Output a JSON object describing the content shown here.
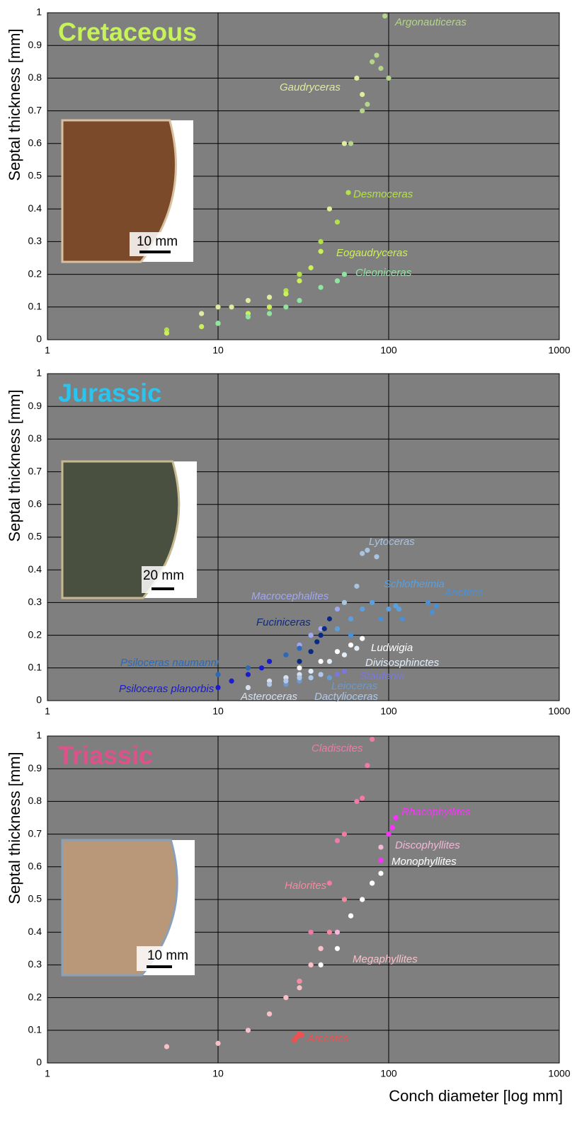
{
  "chart_data": [
    {
      "type": "scatter",
      "title": "Cretaceous",
      "title_color": "#c6f25a",
      "y_label": "Septal thickness [mm]",
      "inset_scale": "10 mm",
      "log_x": true,
      "grid": true,
      "xlim": [
        1,
        1000
      ],
      "xticks": [
        1,
        10,
        100,
        1000
      ],
      "ylim": [
        0,
        1
      ],
      "yticks": [
        0,
        0.1,
        0.2,
        0.3,
        0.4,
        0.5,
        0.6,
        0.7,
        0.8,
        0.9,
        1
      ],
      "series": [
        {
          "name": "Argonauticeras",
          "color": "#b5d58a",
          "x": [
            60,
            70,
            75,
            80,
            85,
            90,
            95,
            100
          ],
          "y": [
            0.6,
            0.7,
            0.72,
            0.85,
            0.87,
            0.83,
            0.99,
            0.8
          ]
        },
        {
          "name": "Gaudryceras",
          "color": "#e0eca0",
          "x": [
            8,
            10,
            12,
            15,
            20,
            30,
            45,
            55,
            65,
            70
          ],
          "y": [
            0.08,
            0.1,
            0.1,
            0.12,
            0.13,
            0.2,
            0.4,
            0.6,
            0.8,
            0.75
          ]
        },
        {
          "name": "Desmoceras",
          "color": "#b4e14a",
          "x": [
            5,
            10,
            15,
            20,
            25,
            30,
            40,
            50,
            58
          ],
          "y": [
            0.03,
            0.05,
            0.08,
            0.1,
            0.15,
            0.2,
            0.3,
            0.36,
            0.45
          ]
        },
        {
          "name": "Eogaudryceras",
          "color": "#ccf05a",
          "x": [
            5,
            8,
            10,
            15,
            20,
            25,
            30,
            35,
            40
          ],
          "y": [
            0.02,
            0.04,
            0.05,
            0.08,
            0.1,
            0.14,
            0.18,
            0.22,
            0.27
          ]
        },
        {
          "name": "Cleoniceras",
          "color": "#8ee6a0",
          "x": [
            10,
            15,
            20,
            25,
            30,
            40,
            50,
            55
          ],
          "y": [
            0.05,
            0.07,
            0.08,
            0.1,
            0.12,
            0.16,
            0.18,
            0.2
          ]
        }
      ]
    },
    {
      "type": "scatter",
      "title": "Jurassic",
      "title_color": "#29c5f0",
      "y_label": "Septal thickness [mm]",
      "inset_scale": "20 mm",
      "log_x": true,
      "grid": true,
      "xlim": [
        1,
        1000
      ],
      "xticks": [
        1,
        10,
        100,
        1000
      ],
      "ylim": [
        0,
        1
      ],
      "yticks": [
        0,
        0.1,
        0.2,
        0.3,
        0.4,
        0.5,
        0.6,
        0.7,
        0.8,
        0.9,
        1
      ],
      "series": [
        {
          "name": "Lytoceras",
          "color": "#a8c4e0",
          "x": [
            35,
            45,
            55,
            65,
            70,
            75,
            85
          ],
          "y": [
            0.2,
            0.25,
            0.3,
            0.35,
            0.45,
            0.46,
            0.44
          ]
        },
        {
          "name": "Schlotheimia",
          "color": "#5aa0e0",
          "x": [
            40,
            50,
            60,
            70,
            80,
            100,
            110,
            115
          ],
          "y": [
            0.2,
            0.22,
            0.25,
            0.28,
            0.3,
            0.28,
            0.29,
            0.28
          ]
        },
        {
          "name": "Arietites",
          "color": "#4a90d8",
          "x": [
            60,
            90,
            120,
            170,
            180,
            190
          ],
          "y": [
            0.2,
            0.25,
            0.25,
            0.3,
            0.27,
            0.29
          ]
        },
        {
          "name": "Macrocephalites",
          "color": "#a0a8f0",
          "x": [
            30,
            35,
            40,
            45,
            50
          ],
          "y": [
            0.17,
            0.2,
            0.22,
            0.25,
            0.28
          ]
        },
        {
          "name": "Fuciniceras",
          "color": "#0a2a80",
          "x": [
            30,
            35,
            38,
            40,
            42,
            45
          ],
          "y": [
            0.12,
            0.15,
            0.18,
            0.2,
            0.22,
            0.25
          ]
        },
        {
          "name": "Ludwigia",
          "color": "#ffffff",
          "x": [
            30,
            40,
            50,
            60,
            70
          ],
          "y": [
            0.1,
            0.12,
            0.15,
            0.17,
            0.19
          ]
        },
        {
          "name": "Divisosphinctes",
          "color": "#e0ecf8",
          "x": [
            25,
            35,
            45,
            55,
            65
          ],
          "y": [
            0.07,
            0.09,
            0.12,
            0.14,
            0.16
          ]
        },
        {
          "name": "Psiloceras naumanni",
          "color": "#2a6ab8",
          "x": [
            10,
            15,
            20,
            25,
            30
          ],
          "y": [
            0.08,
            0.1,
            0.12,
            0.14,
            0.16
          ]
        },
        {
          "name": "Staufenia",
          "color": "#7878e0",
          "x": [
            30,
            40,
            50,
            55
          ],
          "y": [
            0.06,
            0.08,
            0.08,
            0.09
          ]
        },
        {
          "name": "Psiloceras planorbis",
          "color": "#1a1ad0",
          "x": [
            10,
            12,
            15,
            18,
            20
          ],
          "y": [
            0.04,
            0.06,
            0.08,
            0.1,
            0.12
          ]
        },
        {
          "name": "Leioceras",
          "color": "#6a9ad0",
          "x": [
            25,
            30,
            35,
            40,
            45
          ],
          "y": [
            0.05,
            0.06,
            0.07,
            0.08,
            0.07
          ]
        },
        {
          "name": "Asteroceras",
          "color": "#d8e0f0",
          "x": [
            15,
            20,
            25,
            30
          ],
          "y": [
            0.04,
            0.06,
            0.07,
            0.08
          ]
        },
        {
          "name": "Dactylioceras",
          "color": "#b0c8e8",
          "x": [
            20,
            25,
            30,
            35,
            40
          ],
          "y": [
            0.05,
            0.06,
            0.07,
            0.07,
            0.08
          ]
        }
      ]
    },
    {
      "type": "scatter",
      "title": "Triassic",
      "title_color": "#e0508a",
      "y_label": "Septal thickness [mm]",
      "x_label": "Conch diameter [log mm]",
      "inset_scale": "10 mm",
      "log_x": true,
      "grid": true,
      "xlim": [
        1,
        1000
      ],
      "xticks": [
        1,
        10,
        100,
        1000
      ],
      "ylim": [
        0,
        1
      ],
      "yticks": [
        0,
        0.1,
        0.2,
        0.3,
        0.4,
        0.5,
        0.6,
        0.7,
        0.8,
        0.9,
        1
      ],
      "series": [
        {
          "name": "Cladiscites",
          "color": "#f07aa8",
          "x": [
            35,
            45,
            50,
            55,
            65,
            70,
            75,
            80
          ],
          "y": [
            0.4,
            0.55,
            0.68,
            0.7,
            0.8,
            0.81,
            0.91,
            0.99
          ]
        },
        {
          "name": "Rhacophyllites",
          "color": "#ff30ff",
          "x": [
            50,
            60,
            70,
            80,
            90,
            100,
            105,
            110
          ],
          "y": [
            0.4,
            0.45,
            0.5,
            0.55,
            0.62,
            0.7,
            0.72,
            0.75
          ]
        },
        {
          "name": "Discophyllites",
          "color": "#f4b8d8",
          "x": [
            40,
            50,
            60,
            70,
            80,
            90
          ],
          "y": [
            0.35,
            0.4,
            0.45,
            0.5,
            0.55,
            0.66
          ]
        },
        {
          "name": "Monophyllites",
          "color": "#ffffff",
          "x": [
            30,
            40,
            50,
            60,
            70,
            80,
            90
          ],
          "y": [
            0.25,
            0.3,
            0.35,
            0.45,
            0.5,
            0.55,
            0.58
          ]
        },
        {
          "name": "Halorites",
          "color": "#f48aa0",
          "x": [
            20,
            25,
            30,
            35,
            40,
            45,
            55
          ],
          "y": [
            0.15,
            0.2,
            0.25,
            0.3,
            0.35,
            0.4,
            0.5
          ]
        },
        {
          "name": "Megaphyllites",
          "color": "#f8c0c8",
          "x": [
            5,
            10,
            15,
            20,
            25,
            30,
            35,
            40
          ],
          "y": [
            0.05,
            0.06,
            0.1,
            0.15,
            0.2,
            0.23,
            0.3,
            0.35
          ]
        },
        {
          "name": "Arcestes",
          "color": "#f05050",
          "x": [
            28,
            29,
            30,
            31
          ],
          "y": [
            0.07,
            0.08,
            0.09,
            0.085
          ]
        }
      ]
    }
  ]
}
